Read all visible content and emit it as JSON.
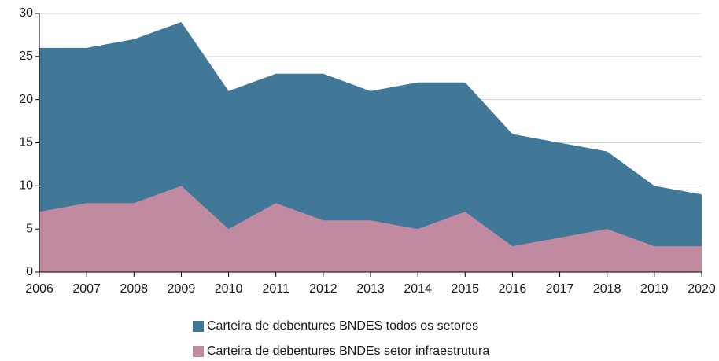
{
  "chart_data": {
    "type": "area",
    "categories": [
      "2006",
      "2007",
      "2008",
      "2009",
      "2010",
      "2011",
      "2012",
      "2013",
      "2014",
      "2015",
      "2016",
      "2017",
      "2018",
      "2019",
      "2020"
    ],
    "series": [
      {
        "name": "Carteira de debentures BNDES todos os setores",
        "color": "#417898",
        "values": [
          26,
          26,
          27,
          29,
          21,
          23,
          23,
          21,
          22,
          22,
          16,
          15,
          14,
          10,
          9
        ]
      },
      {
        "name": "Carteira de debentures BNDEs setor infraestrutura",
        "color": "#c08aa0",
        "values": [
          7,
          8,
          8,
          10,
          5,
          8,
          6,
          6,
          5,
          7,
          3,
          4,
          5,
          3,
          3
        ]
      }
    ],
    "ylim": [
      0,
      30
    ],
    "yticks": [
      0,
      5,
      10,
      15,
      20,
      25,
      30
    ],
    "grid": true
  }
}
